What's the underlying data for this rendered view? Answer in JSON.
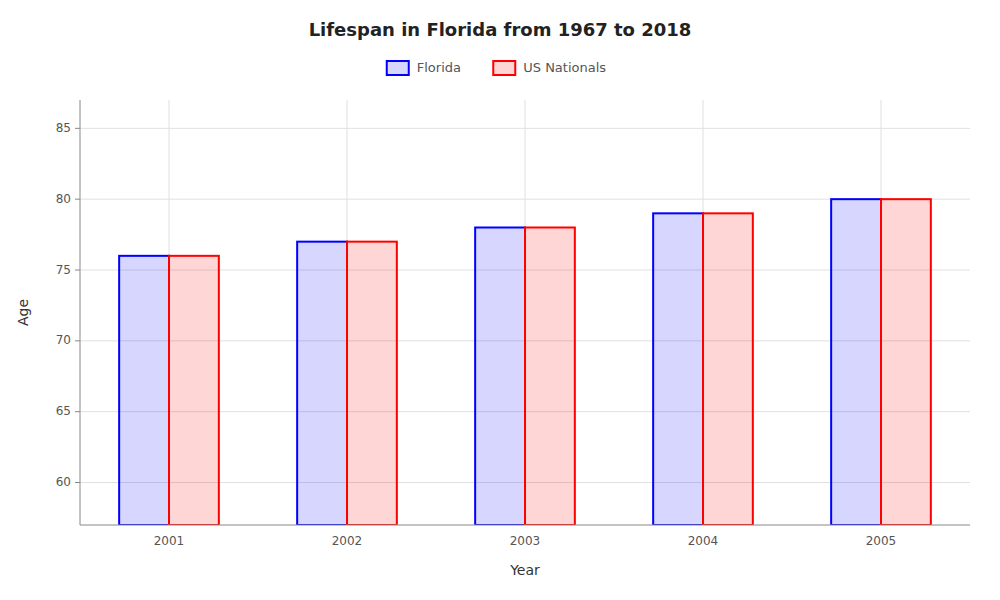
{
  "chart_data": {
    "type": "bar",
    "title": "Lifespan in Florida from 1967 to 2018",
    "x_label": "Year",
    "y_label": "Age",
    "categories": [
      "2001",
      "2002",
      "2003",
      "2004",
      "2005"
    ],
    "series": [
      {
        "name": "Florida",
        "color": "#0000ff",
        "values": [
          76,
          77,
          78,
          79,
          80
        ]
      },
      {
        "name": "US Nationals",
        "color": "#ff0000",
        "values": [
          76,
          77,
          78,
          79,
          80
        ]
      }
    ],
    "ylim": [
      57,
      87
    ],
    "yticks": [
      60,
      65,
      70,
      75,
      80,
      85
    ],
    "grid": true,
    "legend": "top"
  }
}
